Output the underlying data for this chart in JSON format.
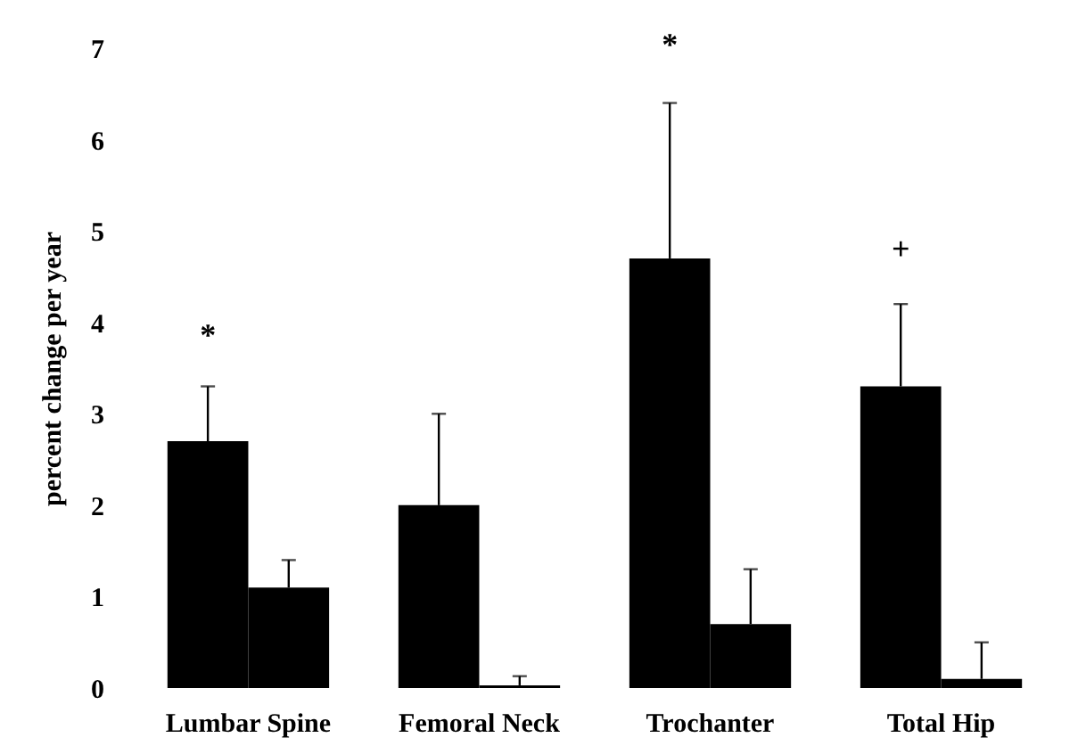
{
  "chart_data": {
    "type": "bar",
    "ylabel": "percent change per year",
    "categories": [
      "Lumbar Spine",
      "Femoral Neck",
      "Trochanter",
      "Total Hip"
    ],
    "series": [
      {
        "color": "#000000",
        "values": [
          2.7,
          2.0,
          4.7,
          3.3
        ],
        "errors": [
          [
            2.7,
            3.3
          ],
          [
            2.0,
            3.0
          ],
          [
            4.7,
            6.4
          ],
          [
            3.3,
            4.2
          ]
        ]
      },
      {
        "color": "#000000",
        "values": [
          1.1,
          0.03,
          0.7,
          0.1
        ],
        "errors": [
          [
            1.1,
            1.4
          ],
          [
            0.03,
            0.13
          ],
          [
            0.7,
            1.3
          ],
          [
            0.1,
            0.5
          ]
        ]
      }
    ],
    "ylim": [
      0,
      7
    ],
    "yticks": [
      0,
      1,
      2,
      3,
      4,
      5,
      6,
      7
    ],
    "grid": false,
    "annotations": [
      "*",
      "*",
      "+"
    ]
  }
}
